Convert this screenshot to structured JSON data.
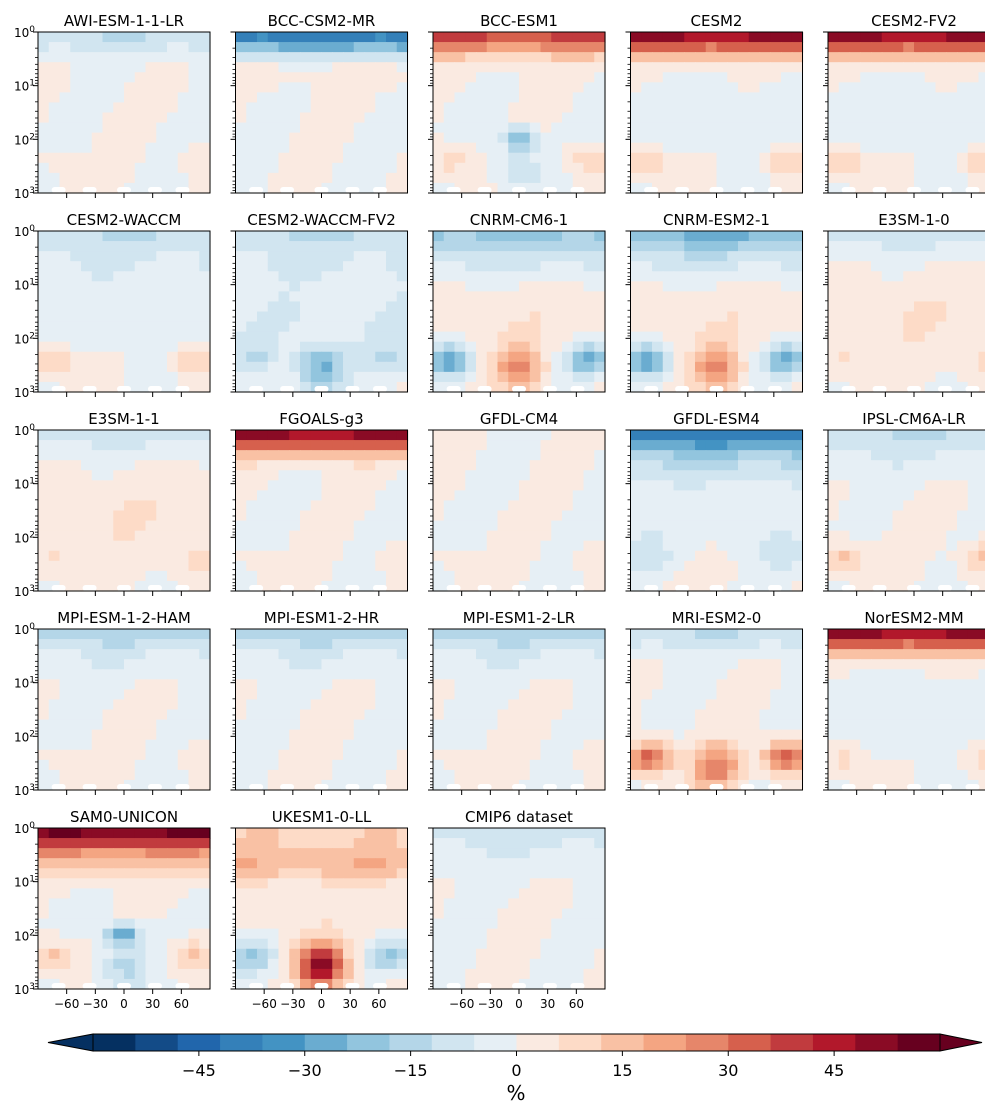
{
  "palette": [
    "#053061",
    "#134b87",
    "#2166ac",
    "#3480b9",
    "#4393c3",
    "#6aacd0",
    "#92c5de",
    "#b4d6e8",
    "#d1e5f0",
    "#e6eff5",
    "#faeae1",
    "#fddbc7",
    "#f9c1a4",
    "#f4a582",
    "#e6866a",
    "#d6604d",
    "#c13b3e",
    "#b2182b",
    "#8a0b25",
    "#67001f"
  ],
  "chart_data": {
    "type": "heatmap",
    "panels": [
      {
        "title": "AWI-ESM-1-1-LR",
        "pattern": {
          "top": -12,
          "band": 0,
          "mid": 0,
          "tropics": 0,
          "side": 3,
          "spot": 0
        }
      },
      {
        "title": "BCC-CSM2-MR",
        "pattern": {
          "top": -40,
          "band": 4,
          "mid": 0,
          "tropics": 0,
          "side": 0,
          "spot": 0
        }
      },
      {
        "title": "BCC-ESM1",
        "pattern": {
          "top": 38,
          "band": 0,
          "mid": 0,
          "tropics": -10,
          "side": 10,
          "spot": -25
        }
      },
      {
        "title": "CESM2",
        "pattern": {
          "top": 50,
          "band": 0,
          "mid": -3,
          "tropics": 0,
          "side": 15,
          "spot": 0
        }
      },
      {
        "title": "CESM2-FV2",
        "pattern": {
          "top": 50,
          "band": 0,
          "mid": -3,
          "tropics": 0,
          "side": 15,
          "spot": 0
        }
      },
      {
        "title": "CESM2-WACCM",
        "pattern": {
          "top": -12,
          "band": -4,
          "mid": -3,
          "tropics": 0,
          "side": 15,
          "spot": 0
        }
      },
      {
        "title": "CESM2-WACCM-FV2",
        "pattern": {
          "top": -12,
          "band": -4,
          "mid": -5,
          "tropics": -25,
          "side": -10,
          "spot": 0
        }
      },
      {
        "title": "CNRM-CM6-1",
        "pattern": {
          "top": -20,
          "band": -6,
          "mid": 4,
          "tropics": 25,
          "side": -30,
          "spot": 0
        }
      },
      {
        "title": "CNRM-ESM2-1",
        "pattern": {
          "top": -25,
          "band": -6,
          "mid": 4,
          "tropics": 25,
          "side": -30,
          "spot": 0
        }
      },
      {
        "title": "E3SM-1-0",
        "pattern": {
          "top": -10,
          "band": 0,
          "mid": 5,
          "tropics": 0,
          "side": 6,
          "spot": 0
        }
      },
      {
        "title": "E3SM-1-1",
        "pattern": {
          "top": -10,
          "band": 0,
          "mid": 5,
          "tropics": 0,
          "side": 6,
          "spot": 0
        }
      },
      {
        "title": "FGOALS-g3",
        "pattern": {
          "top": 50,
          "band": 0,
          "mid": 0,
          "tropics": 0,
          "side": 3,
          "spot": 0
        }
      },
      {
        "title": "GFDL-CM4",
        "pattern": {
          "top": 0,
          "band": 0,
          "mid": 0,
          "tropics": 0,
          "side": 3,
          "spot": 0
        }
      },
      {
        "title": "GFDL-ESM4",
        "pattern": {
          "top": -40,
          "band": -8,
          "mid": -4,
          "tropics": 3,
          "side": -8,
          "spot": 0
        }
      },
      {
        "title": "IPSL-CM6A-LR",
        "pattern": {
          "top": -12,
          "band": -3,
          "mid": 0,
          "tropics": 0,
          "side": 15,
          "spot": 0
        }
      },
      {
        "title": "MPI-ESM-1-2-HAM",
        "pattern": {
          "top": -15,
          "band": -3,
          "mid": 0,
          "tropics": 0,
          "side": 3,
          "spot": 0
        }
      },
      {
        "title": "MPI-ESM1-2-HR",
        "pattern": {
          "top": -15,
          "band": -3,
          "mid": 0,
          "tropics": 0,
          "side": 0,
          "spot": 0
        }
      },
      {
        "title": "MPI-ESM1-2-LR",
        "pattern": {
          "top": -15,
          "band": -3,
          "mid": 0,
          "tropics": 0,
          "side": 3,
          "spot": 0
        }
      },
      {
        "title": "MRI-ESM2-0",
        "pattern": {
          "top": -12,
          "band": 0,
          "mid": 0,
          "tropics": 30,
          "side": 35,
          "spot": 0
        }
      },
      {
        "title": "NorESM2-MM",
        "pattern": {
          "top": 50,
          "band": 0,
          "mid": -4,
          "tropics": 0,
          "side": 12,
          "spot": 0
        }
      },
      {
        "title": "SAM0-UNICON",
        "pattern": {
          "top": 55,
          "band": 10,
          "mid": 0,
          "tropics": -15,
          "side": 15,
          "spot": -30
        }
      },
      {
        "title": "UKESM1-0-LL",
        "pattern": {
          "top": 10,
          "band": 15,
          "mid": 3,
          "tropics": 50,
          "side": -20,
          "spot": 0
        }
      },
      {
        "title": "CMIP6 dataset",
        "pattern": {
          "top": -10,
          "band": -3,
          "mid": 0,
          "tropics": 0,
          "side": 0,
          "spot": 0
        }
      }
    ],
    "x_ticks": [
      "−60",
      "−30",
      "0",
      "30",
      "60"
    ],
    "x_tick_values": [
      -60,
      -30,
      0,
      30,
      60
    ],
    "xlim": [
      -90,
      90
    ],
    "y_ticks": [
      {
        "base": "10",
        "exp": "0",
        "value": 1
      },
      {
        "base": "10",
        "exp": "1",
        "value": 10
      },
      {
        "base": "10",
        "exp": "2",
        "value": 100
      },
      {
        "base": "10",
        "exp": "3",
        "value": 1000
      }
    ],
    "ylim": [
      1000,
      1
    ],
    "y_scale": "log",
    "colorbar": {
      "label": "%",
      "ticks": [
        "−45",
        "−30",
        "−15",
        "0",
        "15",
        "30",
        "45"
      ],
      "tick_values": [
        -45,
        -30,
        -15,
        0,
        15,
        30,
        45
      ],
      "range": [
        -60,
        60
      ],
      "extend": "both"
    }
  }
}
